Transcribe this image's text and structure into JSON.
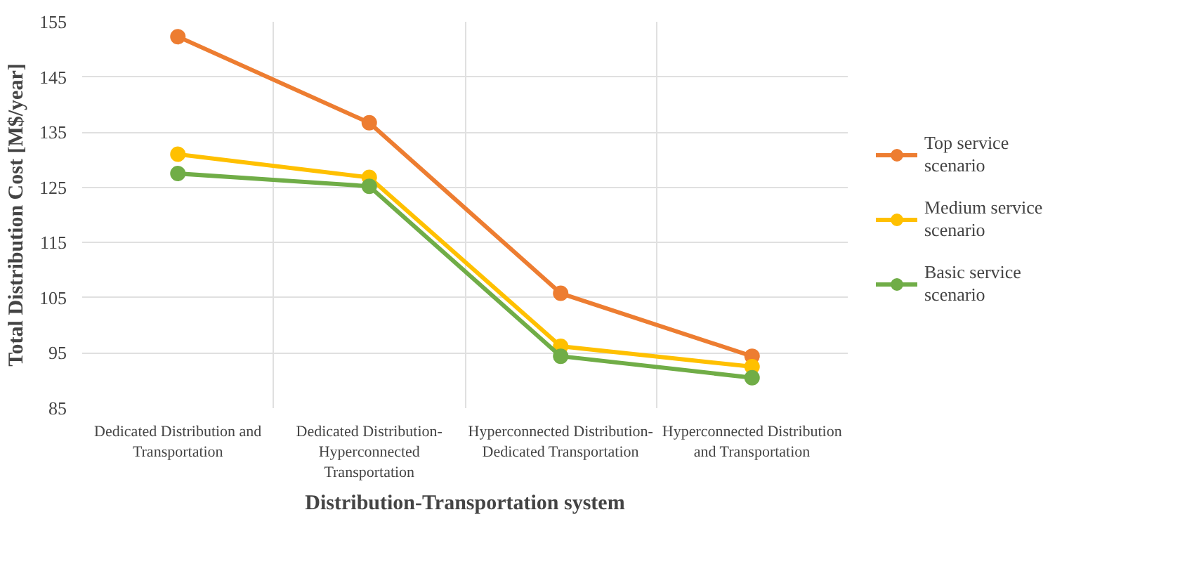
{
  "chart_data": {
    "type": "line",
    "xlabel": "Distribution-Transportation system",
    "ylabel": "Total Distribution Cost [M$/year]",
    "categories": [
      "Dedicated Distribution and Transportation",
      "Dedicated Distribution-Hyperconnected Transportation",
      "Hyperconnected Distribution-Dedicated Transportation",
      "Hyperconnected Distribution and Transportation"
    ],
    "series": [
      {
        "name": "Top service scenario",
        "color": "#ed7d31",
        "values": [
          152.3,
          136.7,
          105.8,
          94.4
        ]
      },
      {
        "name": "Medium service scenario",
        "color": "#ffc000",
        "values": [
          131.0,
          126.8,
          96.2,
          92.5
        ]
      },
      {
        "name": "Basic service scenario",
        "color": "#70ad47",
        "values": [
          127.5,
          125.2,
          94.4,
          90.5
        ]
      }
    ],
    "ylim": [
      85,
      155
    ],
    "yticks": [
      85,
      95,
      105,
      115,
      125,
      135,
      145,
      155
    ],
    "grid": true,
    "legend": "right",
    "marker": "circle",
    "line_style": "solid"
  }
}
